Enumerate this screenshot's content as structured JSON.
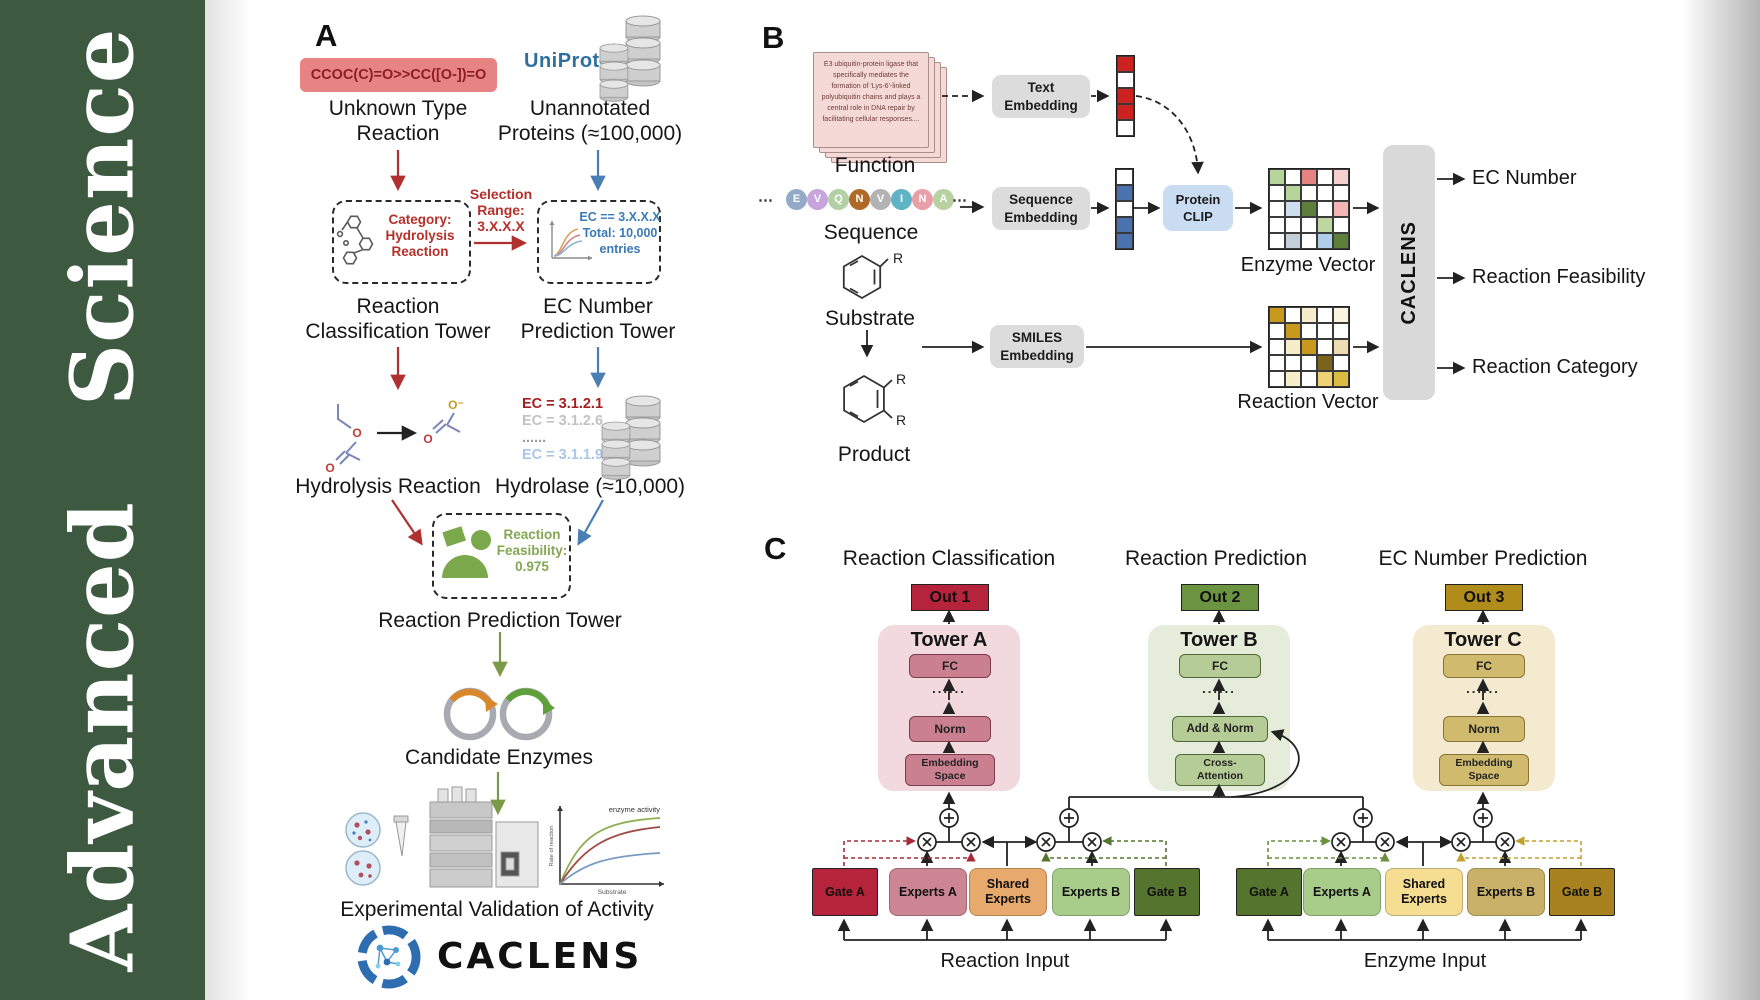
{
  "journal": {
    "word1": "Advanced",
    "word2": "Science"
  },
  "colors": {
    "band_green": "#3d5a40",
    "arrow_red": "#b03030",
    "arrow_blue": "#4a7fb5",
    "arrow_green": "#7a9a4a",
    "uniprot_blue": "#2f6f9f"
  },
  "panelA": {
    "letter": "A",
    "smiles": "CCOC(C)=O>>CC([O-])=O",
    "unknown_reaction": "Unknown Type\nReaction",
    "uniprot": "UniProt",
    "unannotated": "Unannotated\nProteins (≈100,000)",
    "selection_range": "Selection\nRange:\n3.X.X.X",
    "category_box": "Category:\nHydrolysis\nReaction",
    "ec_box": "EC == 3.X.X.X\nTotal: 10,000\nentries",
    "reaction_classification_tower": "Reaction\nClassification Tower",
    "ec_number_prediction_tower": "EC Number\nPrediction Tower",
    "hydrolysis_reaction": "Hydrolysis Reaction",
    "ec_list": [
      "EC = 3.1.2.1",
      "EC = 3.1.2.6",
      "......",
      "EC = 3.1.1.9"
    ],
    "ec_list_colors": [
      "#a32020",
      "#c2c2c2",
      "#9a9a9a",
      "#a9c6e8"
    ],
    "hydrolase": "Hydrolase (≈10,000)",
    "enzyme_icon_label": "Enzyme",
    "feasibility": "Reaction\nFeasibility:\n0.975",
    "reaction_prediction_tower": "Reaction Prediction Tower",
    "candidate_enzymes": "Candidate Enzymes",
    "experimental_validation": "Experimental Validation of Activity",
    "kinetics": {
      "ylabel": "Rate of reaction",
      "xlabel": "Substrate",
      "annotation": "enzyme activity"
    },
    "molecule": {
      "o": "O",
      "o_minus": "O⁻"
    },
    "caclens_logo": "CACLENS"
  },
  "panelB": {
    "letter": "B",
    "function_card_text": "E3 ubiquitin-protein ligase that specifically mediates the formation of 'Lys-6'-linked polyubiquitin chains and plays a central role in DNA repair by facilitating cellular responses....",
    "function_label": "Function",
    "sequence_dots": "⋯",
    "sequence_letters": [
      "E",
      "V",
      "Q",
      "N",
      "V",
      "I",
      "N",
      "A"
    ],
    "sequence_colors": [
      "#93aac8",
      "#c8a4dc",
      "#b2cfa6",
      "#b06a28",
      "#b3b3b3",
      "#5fb3c4",
      "#e8a0a8",
      "#b7d2a0"
    ],
    "sequence_label": "Sequence",
    "substrate_label": "Substrate",
    "product_label": "Product",
    "r_label": "R",
    "text_embedding": "Text\nEmbedding",
    "sequence_embedding": "Sequence\nEmbedding",
    "smiles_embedding": "SMILES\nEmbedding",
    "protein_clip": "Protein\nCLIP",
    "text_vector": [
      "#cc2222",
      "#ffffff",
      "#cc2222",
      "#cc2222",
      "#ffffff"
    ],
    "sequence_vector": [
      "#ffffff",
      "#4a72ae",
      "#ffffff",
      "#4a72ae",
      "#4a72ae"
    ],
    "enzyme_vector_label": "Enzyme Vector",
    "reaction_vector_label": "Reaction Vector",
    "enzyme_vector_grid": [
      [
        "#b7d59a",
        "#ffffff",
        "#e58383",
        "#ffffff",
        "#f6cfcf"
      ],
      [
        "#ffffff",
        "#b7d59a",
        "#ffffff",
        "#ffffff",
        "#ffffff"
      ],
      [
        "#ffffff",
        "#cfdeee",
        "#5e7f3c",
        "#ffffff",
        "#f2b6b6"
      ],
      [
        "#ffffff",
        "#ffffff",
        "#ffffff",
        "#bed7a0",
        "#ffffff"
      ],
      [
        "#ffffff",
        "#c4cfda",
        "#ffffff",
        "#b0cdea",
        "#5e7f3c"
      ]
    ],
    "reaction_vector_grid": [
      [
        "#c79a1f",
        "#ffffff",
        "#f6eecb",
        "#ffffff",
        "#fbf5df"
      ],
      [
        "#ffffff",
        "#c79a1f",
        "#ffffff",
        "#ffffff",
        "#ffffff"
      ],
      [
        "#ffffff",
        "#f6eecb",
        "#c79a1f",
        "#ffffff",
        "#eedbb1"
      ],
      [
        "#ffffff",
        "#ffffff",
        "#ffffff",
        "#7c631b",
        "#ffffff"
      ],
      [
        "#ffffff",
        "#f6eecb",
        "#ffffff",
        "#f0d173",
        "#dabc42"
      ]
    ],
    "caclens_block": "CACLENS",
    "outputs": [
      "EC Number",
      "Reaction Feasibility",
      "Reaction Category"
    ]
  },
  "panelC": {
    "letter": "C",
    "headings": [
      "Reaction Classification",
      "Reaction Prediction",
      "EC Number Prediction"
    ],
    "outs": [
      "Out 1",
      "Out 2",
      "Out 3"
    ],
    "out_colors": [
      "#b5243a",
      "#6b9440",
      "#b08c1a"
    ],
    "tower_bg_colors": [
      "#f2d9dd",
      "#e6ecda",
      "#f3ead0"
    ],
    "tower_block_colors": [
      "#ca8090",
      "#b6cc96",
      "#d0ba6e"
    ],
    "towers": [
      {
        "title": "Tower A",
        "fc": "FC",
        "dots": "......",
        "norm": "Norm",
        "bottom": "Embedding\nSpace"
      },
      {
        "title": "Tower B",
        "fc": "FC",
        "dots": "......",
        "norm": "Add & Norm",
        "bottom": "Cross-\nAttention"
      },
      {
        "title": "Tower C",
        "fc": "FC",
        "dots": "......",
        "norm": "Norm",
        "bottom": "Embedding\nSpace"
      }
    ],
    "moe_left": {
      "boxes": [
        "Gate A",
        "Experts A",
        "Shared\nExperts",
        "Experts B",
        "Gate B"
      ],
      "colors": [
        "#b5243a",
        "#cc8593",
        "#e8a96c",
        "#a8cc8a",
        "#55752f"
      ],
      "input_label": "Reaction Input"
    },
    "moe_right": {
      "boxes": [
        "Gate A",
        "Experts A",
        "Shared\nExperts",
        "Experts B",
        "Gate B"
      ],
      "colors": [
        "#55752f",
        "#a8cc8a",
        "#f5dd92",
        "#c9b16a",
        "#a8821e"
      ],
      "input_label": "Enzyme Input"
    }
  }
}
